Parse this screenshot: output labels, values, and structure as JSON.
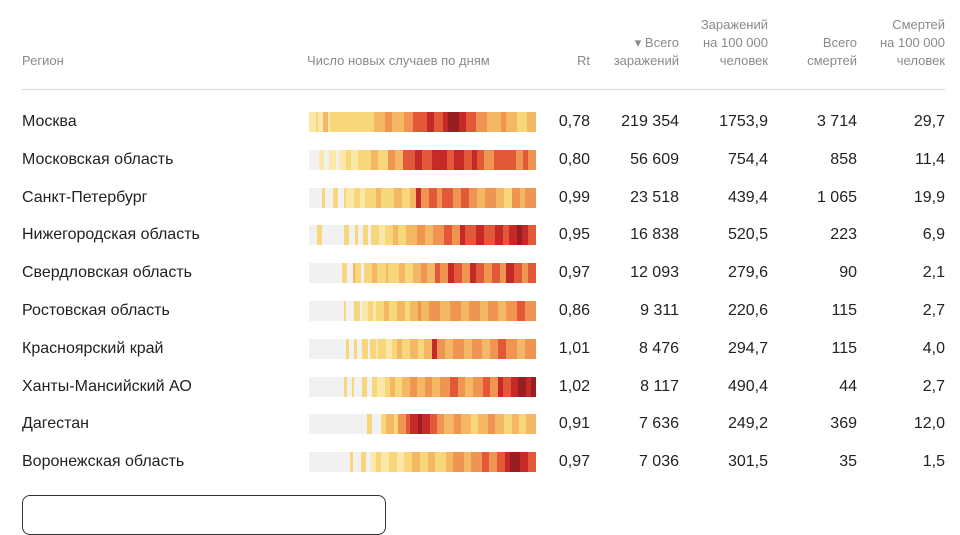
{
  "headers": {
    "region": "Регион",
    "daily": "Число новых случаев по дням",
    "rt": "Rt",
    "total_cases": [
      "▾ Всего",
      "заражений"
    ],
    "cases_per_100k": [
      "Заражений",
      "на 100 000",
      "человек"
    ],
    "total_deaths": [
      "Всего",
      "смертей"
    ],
    "deaths_per_100k": [
      "Смертей",
      "на 100 000",
      "человек"
    ]
  },
  "colors": {
    "none": "#f1f1f1",
    "l1": "#fbe7a8",
    "l2": "#f8d67c",
    "l3": "#f4b865",
    "l4": "#ef9551",
    "l5": "#e4583a",
    "l6": "#c62a28",
    "l7": "#981e22"
  },
  "rows": [
    {
      "region": "Москва",
      "rt": "0,78",
      "cases": "219 354",
      "cases_per_100k": "1753,9",
      "deaths": "3 714",
      "deaths_per_100k": "29,7",
      "strip": [
        [
          3,
          "l1"
        ],
        [
          1,
          "l2"
        ],
        [
          2,
          "l1"
        ],
        [
          2,
          "l3"
        ],
        [
          1,
          "l1"
        ],
        [
          19,
          "l2"
        ],
        [
          5,
          "l3"
        ],
        [
          3,
          "l4"
        ],
        [
          5,
          "l3"
        ],
        [
          4,
          "l4"
        ],
        [
          6,
          "l5"
        ],
        [
          3,
          "l6"
        ],
        [
          4,
          "l5"
        ],
        [
          2,
          "l6"
        ],
        [
          5,
          "l7"
        ],
        [
          3,
          "l6"
        ],
        [
          4,
          "l5"
        ],
        [
          5,
          "l4"
        ],
        [
          6,
          "l3"
        ],
        [
          2,
          "l4"
        ],
        [
          5,
          "l3"
        ],
        [
          4,
          "l2"
        ],
        [
          4,
          "l3"
        ]
      ]
    },
    {
      "region": "Московская область",
      "rt": "0,80",
      "cases": "56 609",
      "cases_per_100k": "754,4",
      "deaths": "858",
      "deaths_per_100k": "11,4",
      "strip": [
        [
          4,
          "none"
        ],
        [
          2,
          "l1"
        ],
        [
          2,
          "none"
        ],
        [
          3,
          "l1"
        ],
        [
          1,
          "none"
        ],
        [
          3,
          "l1"
        ],
        [
          2,
          "l2"
        ],
        [
          3,
          "l1"
        ],
        [
          5,
          "l2"
        ],
        [
          3,
          "l3"
        ],
        [
          4,
          "l2"
        ],
        [
          3,
          "l4"
        ],
        [
          3,
          "l3"
        ],
        [
          5,
          "l5"
        ],
        [
          3,
          "l6"
        ],
        [
          4,
          "l5"
        ],
        [
          6,
          "l6"
        ],
        [
          3,
          "l5"
        ],
        [
          4,
          "l6"
        ],
        [
          3,
          "l5"
        ],
        [
          2,
          "l6"
        ],
        [
          3,
          "l5"
        ],
        [
          4,
          "l4"
        ],
        [
          3,
          "l5"
        ],
        [
          6,
          "l5"
        ],
        [
          3,
          "l4"
        ],
        [
          2,
          "l5"
        ],
        [
          3,
          "l4"
        ]
      ]
    },
    {
      "region": "Санкт-Петербург",
      "rt": "0,99",
      "cases": "23 518",
      "cases_per_100k": "439,4",
      "deaths": "1 065",
      "deaths_per_100k": "19,9",
      "strip": [
        [
          5,
          "none"
        ],
        [
          1,
          "l2"
        ],
        [
          3,
          "none"
        ],
        [
          2,
          "l2"
        ],
        [
          2,
          "none"
        ],
        [
          1,
          "l2"
        ],
        [
          3,
          "l1"
        ],
        [
          2,
          "l2"
        ],
        [
          2,
          "l1"
        ],
        [
          4,
          "l2"
        ],
        [
          2,
          "l3"
        ],
        [
          5,
          "l2"
        ],
        [
          3,
          "l3"
        ],
        [
          3,
          "l2"
        ],
        [
          2,
          "l3"
        ],
        [
          2,
          "l6"
        ],
        [
          3,
          "l4"
        ],
        [
          3,
          "l5"
        ],
        [
          2,
          "l4"
        ],
        [
          4,
          "l5"
        ],
        [
          3,
          "l4"
        ],
        [
          3,
          "l5"
        ],
        [
          3,
          "l4"
        ],
        [
          3,
          "l3"
        ],
        [
          4,
          "l4"
        ],
        [
          3,
          "l3"
        ],
        [
          3,
          "l2"
        ],
        [
          3,
          "l4"
        ],
        [
          2,
          "l3"
        ],
        [
          4,
          "l4"
        ]
      ]
    },
    {
      "region": "Нижегородская область",
      "rt": "0,95",
      "cases": "16 838",
      "cases_per_100k": "520,5",
      "deaths": "223",
      "deaths_per_100k": "6,9",
      "strip": [
        [
          3,
          "none"
        ],
        [
          2,
          "l2"
        ],
        [
          8,
          "none"
        ],
        [
          2,
          "l2"
        ],
        [
          2,
          "none"
        ],
        [
          1,
          "l2"
        ],
        [
          2,
          "none"
        ],
        [
          2,
          "l2"
        ],
        [
          1,
          "none"
        ],
        [
          3,
          "l2"
        ],
        [
          2,
          "l1"
        ],
        [
          3,
          "l2"
        ],
        [
          2,
          "l3"
        ],
        [
          3,
          "l2"
        ],
        [
          4,
          "l3"
        ],
        [
          3,
          "l4"
        ],
        [
          3,
          "l3"
        ],
        [
          4,
          "l4"
        ],
        [
          3,
          "l5"
        ],
        [
          3,
          "l4"
        ],
        [
          2,
          "l6"
        ],
        [
          4,
          "l5"
        ],
        [
          3,
          "l6"
        ],
        [
          4,
          "l5"
        ],
        [
          3,
          "l6"
        ],
        [
          2,
          "l5"
        ],
        [
          3,
          "l6"
        ],
        [
          2,
          "l7"
        ],
        [
          2,
          "l6"
        ],
        [
          3,
          "l5"
        ]
      ]
    },
    {
      "region": "Свердловская область",
      "rt": "0,97",
      "cases": "12 093",
      "cases_per_100k": "279,6",
      "deaths": "90",
      "deaths_per_100k": "2,1",
      "strip": [
        [
          12,
          "none"
        ],
        [
          2,
          "l2"
        ],
        [
          2,
          "none"
        ],
        [
          1,
          "l3"
        ],
        [
          2,
          "l2"
        ],
        [
          1,
          "none"
        ],
        [
          3,
          "l2"
        ],
        [
          2,
          "l3"
        ],
        [
          3,
          "l2"
        ],
        [
          1,
          "l3"
        ],
        [
          4,
          "l2"
        ],
        [
          2,
          "l3"
        ],
        [
          3,
          "l2"
        ],
        [
          3,
          "l3"
        ],
        [
          2,
          "l4"
        ],
        [
          3,
          "l3"
        ],
        [
          2,
          "l5"
        ],
        [
          3,
          "l4"
        ],
        [
          2,
          "l6"
        ],
        [
          3,
          "l5"
        ],
        [
          3,
          "l4"
        ],
        [
          2,
          "l6"
        ],
        [
          3,
          "l5"
        ],
        [
          3,
          "l4"
        ],
        [
          3,
          "l5"
        ],
        [
          2,
          "l4"
        ],
        [
          3,
          "l6"
        ],
        [
          3,
          "l5"
        ],
        [
          2,
          "l4"
        ],
        [
          3,
          "l5"
        ]
      ]
    },
    {
      "region": "Ростовская область",
      "rt": "0,86",
      "cases": "9 311",
      "cases_per_100k": "220,6",
      "deaths": "115",
      "deaths_per_100k": "2,7",
      "strip": [
        [
          13,
          "none"
        ],
        [
          1,
          "l2"
        ],
        [
          3,
          "none"
        ],
        [
          2,
          "l2"
        ],
        [
          1,
          "none"
        ],
        [
          2,
          "l1"
        ],
        [
          2,
          "l2"
        ],
        [
          1,
          "l1"
        ],
        [
          3,
          "l2"
        ],
        [
          2,
          "l3"
        ],
        [
          3,
          "l2"
        ],
        [
          3,
          "l3"
        ],
        [
          2,
          "l2"
        ],
        [
          3,
          "l3"
        ],
        [
          1,
          "l4"
        ],
        [
          3,
          "l3"
        ],
        [
          4,
          "l4"
        ],
        [
          4,
          "l3"
        ],
        [
          4,
          "l4"
        ],
        [
          3,
          "l3"
        ],
        [
          4,
          "l4"
        ],
        [
          3,
          "l3"
        ],
        [
          4,
          "l4"
        ],
        [
          3,
          "l3"
        ],
        [
          4,
          "l4"
        ],
        [
          3,
          "l5"
        ],
        [
          4,
          "l4"
        ]
      ]
    },
    {
      "region": "Красноярский край",
      "rt": "1,01",
      "cases": "8 476",
      "cases_per_100k": "294,7",
      "deaths": "115",
      "deaths_per_100k": "4,0",
      "strip": [
        [
          14,
          "none"
        ],
        [
          1,
          "l2"
        ],
        [
          2,
          "none"
        ],
        [
          1,
          "l2"
        ],
        [
          2,
          "none"
        ],
        [
          2,
          "l2"
        ],
        [
          1,
          "none"
        ],
        [
          2,
          "l2"
        ],
        [
          1,
          "l1"
        ],
        [
          3,
          "l2"
        ],
        [
          2,
          "l1"
        ],
        [
          2,
          "l2"
        ],
        [
          2,
          "l3"
        ],
        [
          3,
          "l2"
        ],
        [
          3,
          "l3"
        ],
        [
          2,
          "l2"
        ],
        [
          3,
          "l3"
        ],
        [
          2,
          "l6"
        ],
        [
          3,
          "l4"
        ],
        [
          3,
          "l3"
        ],
        [
          4,
          "l4"
        ],
        [
          3,
          "l3"
        ],
        [
          4,
          "l4"
        ],
        [
          3,
          "l3"
        ],
        [
          3,
          "l4"
        ],
        [
          3,
          "l5"
        ],
        [
          4,
          "l4"
        ],
        [
          3,
          "l3"
        ],
        [
          4,
          "l4"
        ]
      ]
    },
    {
      "region": "Ханты-Мансийский АО",
      "rt": "1,02",
      "cases": "8 117",
      "cases_per_100k": "490,4",
      "deaths": "44",
      "deaths_per_100k": "2,7",
      "strip": [
        [
          14,
          "none"
        ],
        [
          1,
          "l2"
        ],
        [
          2,
          "none"
        ],
        [
          1,
          "l2"
        ],
        [
          3,
          "none"
        ],
        [
          2,
          "l2"
        ],
        [
          2,
          "none"
        ],
        [
          2,
          "l2"
        ],
        [
          3,
          "l1"
        ],
        [
          2,
          "l2"
        ],
        [
          2,
          "l3"
        ],
        [
          3,
          "l2"
        ],
        [
          3,
          "l3"
        ],
        [
          3,
          "l4"
        ],
        [
          3,
          "l3"
        ],
        [
          3,
          "l4"
        ],
        [
          3,
          "l3"
        ],
        [
          4,
          "l4"
        ],
        [
          3,
          "l5"
        ],
        [
          3,
          "l4"
        ],
        [
          3,
          "l3"
        ],
        [
          4,
          "l4"
        ],
        [
          3,
          "l5"
        ],
        [
          3,
          "l4"
        ],
        [
          2,
          "l6"
        ],
        [
          3,
          "l5"
        ],
        [
          3,
          "l6"
        ],
        [
          3,
          "l7"
        ],
        [
          2,
          "l6"
        ],
        [
          2,
          "l7"
        ]
      ]
    },
    {
      "region": "Дагестан",
      "rt": "0,91",
      "cases": "7 636",
      "cases_per_100k": "249,2",
      "deaths": "369",
      "deaths_per_100k": "12,0",
      "strip": [
        [
          24,
          "none"
        ],
        [
          2,
          "l2"
        ],
        [
          4,
          "none"
        ],
        [
          2,
          "l2"
        ],
        [
          3,
          "l3"
        ],
        [
          2,
          "l2"
        ],
        [
          3,
          "l4"
        ],
        [
          2,
          "l5"
        ],
        [
          3,
          "l6"
        ],
        [
          2,
          "l7"
        ],
        [
          3,
          "l6"
        ],
        [
          3,
          "l5"
        ],
        [
          3,
          "l4"
        ],
        [
          4,
          "l3"
        ],
        [
          3,
          "l4"
        ],
        [
          4,
          "l3"
        ],
        [
          3,
          "l2"
        ],
        [
          4,
          "l3"
        ],
        [
          3,
          "l4"
        ],
        [
          4,
          "l3"
        ],
        [
          3,
          "l2"
        ],
        [
          3,
          "l3"
        ],
        [
          3,
          "l2"
        ],
        [
          4,
          "l3"
        ]
      ]
    },
    {
      "region": "Воронежская область",
      "rt": "0,97",
      "cases": "7 036",
      "cases_per_100k": "301,5",
      "deaths": "35",
      "deaths_per_100k": "1,5",
      "strip": [
        [
          16,
          "none"
        ],
        [
          1,
          "l2"
        ],
        [
          3,
          "none"
        ],
        [
          2,
          "l2"
        ],
        [
          2,
          "none"
        ],
        [
          2,
          "l1"
        ],
        [
          2,
          "l2"
        ],
        [
          3,
          "l1"
        ],
        [
          3,
          "l2"
        ],
        [
          3,
          "l1"
        ],
        [
          3,
          "l2"
        ],
        [
          3,
          "l3"
        ],
        [
          3,
          "l2"
        ],
        [
          3,
          "l3"
        ],
        [
          4,
          "l2"
        ],
        [
          3,
          "l3"
        ],
        [
          4,
          "l4"
        ],
        [
          3,
          "l3"
        ],
        [
          4,
          "l4"
        ],
        [
          3,
          "l5"
        ],
        [
          3,
          "l4"
        ],
        [
          3,
          "l5"
        ],
        [
          2,
          "l6"
        ],
        [
          4,
          "l7"
        ],
        [
          3,
          "l6"
        ],
        [
          3,
          "l5"
        ]
      ]
    }
  ]
}
